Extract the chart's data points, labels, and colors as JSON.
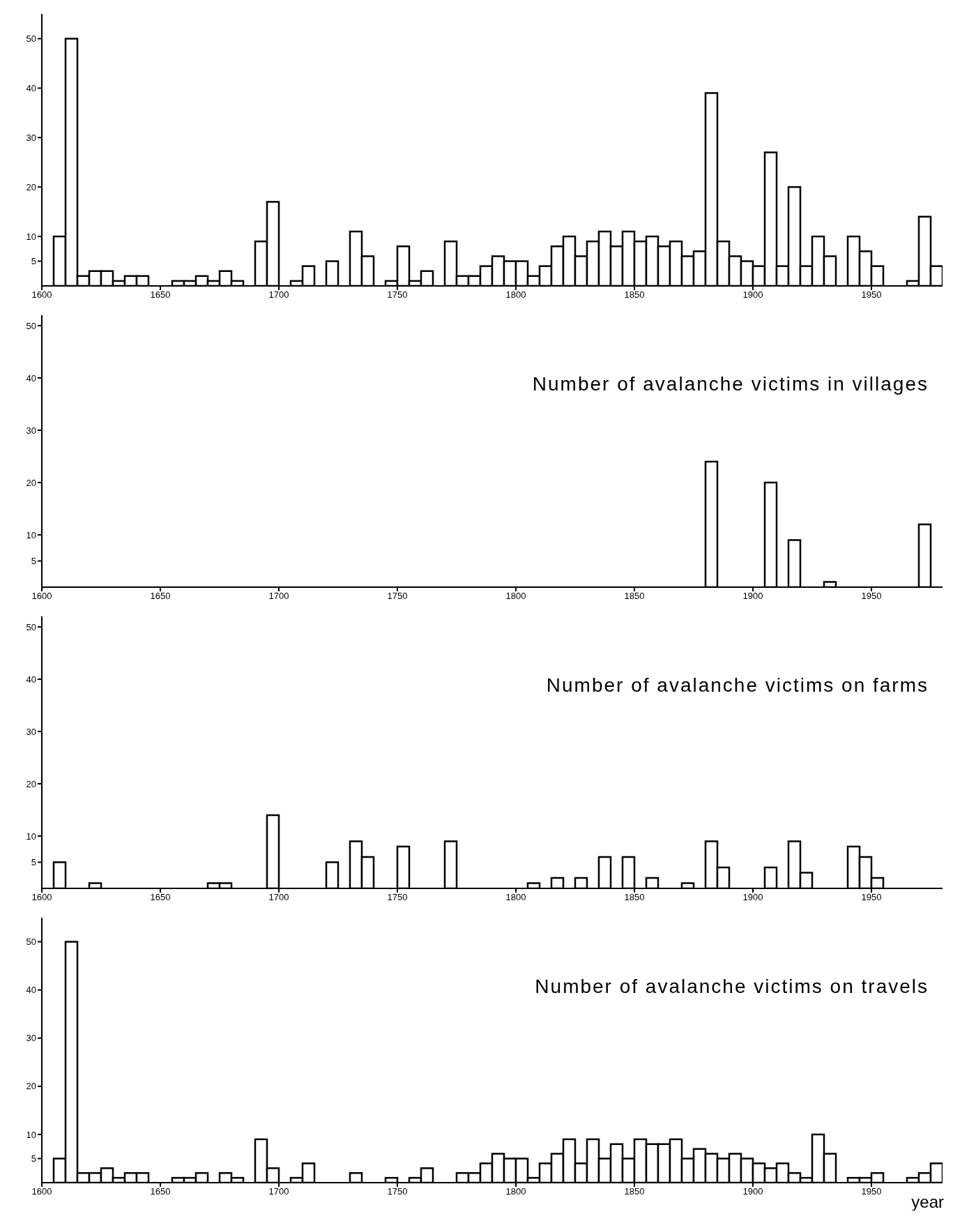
{
  "chart_data": [
    {
      "type": "histogram",
      "bins": [
        1600,
        1605,
        1610,
        1615,
        1620,
        1625,
        1630,
        1635,
        1640,
        1645,
        1650,
        1655,
        1660,
        1665,
        1670,
        1675,
        1680,
        1685,
        1690,
        1695,
        1700,
        1705,
        1710,
        1715,
        1720,
        1725,
        1730,
        1735,
        1740,
        1745,
        1750,
        1755,
        1760,
        1765,
        1770,
        1775,
        1780,
        1785,
        1790,
        1795,
        1800,
        1805,
        1810,
        1815,
        1820,
        1825,
        1830,
        1835,
        1840,
        1845,
        1850,
        1855,
        1860,
        1865,
        1870,
        1875,
        1880,
        1885,
        1890,
        1895,
        1900,
        1905,
        1910,
        1915,
        1920,
        1925,
        1930,
        1935,
        1940,
        1945,
        1950,
        1955,
        1960,
        1965,
        1970,
        1975,
        1980
      ],
      "values": [
        0,
        10,
        50,
        2,
        3,
        3,
        1,
        2,
        2,
        0,
        0,
        1,
        1,
        2,
        1,
        3,
        1,
        0,
        9,
        17,
        0,
        1,
        4,
        0,
        5,
        0,
        11,
        6,
        0,
        1,
        8,
        1,
        3,
        0,
        9,
        2,
        2,
        4,
        6,
        5,
        5,
        2,
        4,
        8,
        10,
        6,
        9,
        11,
        8,
        11,
        9,
        10,
        8,
        9,
        6,
        7,
        39,
        9,
        6,
        5,
        4,
        27,
        4,
        20,
        4,
        10,
        6,
        0,
        10,
        7,
        4,
        0,
        0,
        1,
        14,
        4
      ],
      "color": "#000000",
      "xlim": [
        1600,
        1980
      ],
      "xticks": [
        1600,
        1650,
        1700,
        1750,
        1800,
        1850,
        1900,
        1950
      ],
      "ylim": [
        0,
        55
      ],
      "yticks": [
        5,
        10,
        20,
        30,
        40,
        50
      ],
      "grid": false,
      "legend": false
    },
    {
      "type": "histogram",
      "title": "Number of avalanche victims in villages",
      "bins": [
        1600,
        1605,
        1610,
        1615,
        1620,
        1625,
        1630,
        1635,
        1640,
        1645,
        1650,
        1655,
        1660,
        1665,
        1670,
        1675,
        1680,
        1685,
        1690,
        1695,
        1700,
        1705,
        1710,
        1715,
        1720,
        1725,
        1730,
        1735,
        1740,
        1745,
        1750,
        1755,
        1760,
        1765,
        1770,
        1775,
        1780,
        1785,
        1790,
        1795,
        1800,
        1805,
        1810,
        1815,
        1820,
        1825,
        1830,
        1835,
        1840,
        1845,
        1850,
        1855,
        1860,
        1865,
        1870,
        1875,
        1880,
        1885,
        1890,
        1895,
        1900,
        1905,
        1910,
        1915,
        1920,
        1925,
        1930,
        1935,
        1940,
        1945,
        1950,
        1955,
        1960,
        1965,
        1970,
        1975,
        1980
      ],
      "values": [
        0,
        0,
        0,
        0,
        0,
        0,
        0,
        0,
        0,
        0,
        0,
        0,
        0,
        0,
        0,
        0,
        0,
        0,
        0,
        0,
        0,
        0,
        0,
        0,
        0,
        0,
        0,
        0,
        0,
        0,
        0,
        0,
        0,
        0,
        0,
        0,
        0,
        0,
        0,
        0,
        0,
        0,
        0,
        0,
        0,
        0,
        0,
        0,
        0,
        0,
        0,
        0,
        0,
        0,
        0,
        0,
        24,
        0,
        0,
        0,
        0,
        20,
        0,
        9,
        0,
        0,
        1,
        0,
        0,
        0,
        0,
        0,
        0,
        0,
        12,
        0
      ],
      "color": "#000000",
      "xlim": [
        1600,
        1980
      ],
      "xticks": [
        1600,
        1650,
        1700,
        1750,
        1800,
        1850,
        1900,
        1950
      ],
      "ylim": [
        0,
        52
      ],
      "yticks": [
        5,
        10,
        20,
        30,
        40,
        50
      ],
      "grid": false,
      "legend": false
    },
    {
      "type": "histogram",
      "title": "Number of avalanche victims on farms",
      "bins": [
        1600,
        1605,
        1610,
        1615,
        1620,
        1625,
        1630,
        1635,
        1640,
        1645,
        1650,
        1655,
        1660,
        1665,
        1670,
        1675,
        1680,
        1685,
        1690,
        1695,
        1700,
        1705,
        1710,
        1715,
        1720,
        1725,
        1730,
        1735,
        1740,
        1745,
        1750,
        1755,
        1760,
        1765,
        1770,
        1775,
        1780,
        1785,
        1790,
        1795,
        1800,
        1805,
        1810,
        1815,
        1820,
        1825,
        1830,
        1835,
        1840,
        1845,
        1850,
        1855,
        1860,
        1865,
        1870,
        1875,
        1880,
        1885,
        1890,
        1895,
        1900,
        1905,
        1910,
        1915,
        1920,
        1925,
        1930,
        1935,
        1940,
        1945,
        1950,
        1955,
        1960,
        1965,
        1970,
        1975,
        1980
      ],
      "values": [
        0,
        5,
        0,
        0,
        1,
        0,
        0,
        0,
        0,
        0,
        0,
        0,
        0,
        0,
        1,
        1,
        0,
        0,
        0,
        14,
        0,
        0,
        0,
        0,
        5,
        0,
        9,
        6,
        0,
        0,
        8,
        0,
        0,
        0,
        9,
        0,
        0,
        0,
        0,
        0,
        0,
        1,
        0,
        2,
        0,
        2,
        0,
        6,
        0,
        6,
        0,
        2,
        0,
        0,
        1,
        0,
        9,
        4,
        0,
        0,
        0,
        4,
        0,
        9,
        3,
        0,
        0,
        0,
        8,
        6,
        2,
        0,
        0,
        0,
        0,
        0
      ],
      "color": "#000000",
      "xlim": [
        1600,
        1980
      ],
      "xticks": [
        1600,
        1650,
        1700,
        1750,
        1800,
        1850,
        1900,
        1950
      ],
      "ylim": [
        0,
        52
      ],
      "yticks": [
        5,
        10,
        20,
        30,
        40,
        50
      ],
      "grid": false,
      "legend": false
    },
    {
      "type": "histogram",
      "title": "Number of avalanche victims on travels",
      "xlabel": "year",
      "bins": [
        1600,
        1605,
        1610,
        1615,
        1620,
        1625,
        1630,
        1635,
        1640,
        1645,
        1650,
        1655,
        1660,
        1665,
        1670,
        1675,
        1680,
        1685,
        1690,
        1695,
        1700,
        1705,
        1710,
        1715,
        1720,
        1725,
        1730,
        1735,
        1740,
        1745,
        1750,
        1755,
        1760,
        1765,
        1770,
        1775,
        1780,
        1785,
        1790,
        1795,
        1800,
        1805,
        1810,
        1815,
        1820,
        1825,
        1830,
        1835,
        1840,
        1845,
        1850,
        1855,
        1860,
        1865,
        1870,
        1875,
        1880,
        1885,
        1890,
        1895,
        1900,
        1905,
        1910,
        1915,
        1920,
        1925,
        1930,
        1935,
        1940,
        1945,
        1950,
        1955,
        1960,
        1965,
        1970,
        1975,
        1980
      ],
      "values": [
        0,
        5,
        50,
        2,
        2,
        3,
        1,
        2,
        2,
        0,
        0,
        1,
        1,
        2,
        0,
        2,
        1,
        0,
        9,
        3,
        0,
        1,
        4,
        0,
        0,
        0,
        2,
        0,
        0,
        1,
        0,
        1,
        3,
        0,
        0,
        2,
        2,
        4,
        6,
        5,
        5,
        1,
        4,
        6,
        9,
        4,
        9,
        5,
        8,
        5,
        9,
        8,
        8,
        9,
        5,
        7,
        6,
        5,
        6,
        5,
        4,
        3,
        4,
        2,
        1,
        10,
        6,
        0,
        1,
        1,
        2,
        0,
        0,
        1,
        2,
        4
      ],
      "color": "#000000",
      "xlim": [
        1600,
        1980
      ],
      "xticks": [
        1600,
        1650,
        1700,
        1750,
        1800,
        1850,
        1900,
        1950
      ],
      "ylim": [
        0,
        55
      ],
      "yticks": [
        5,
        10,
        20,
        30,
        40,
        50
      ],
      "grid": false,
      "legend": false
    }
  ]
}
